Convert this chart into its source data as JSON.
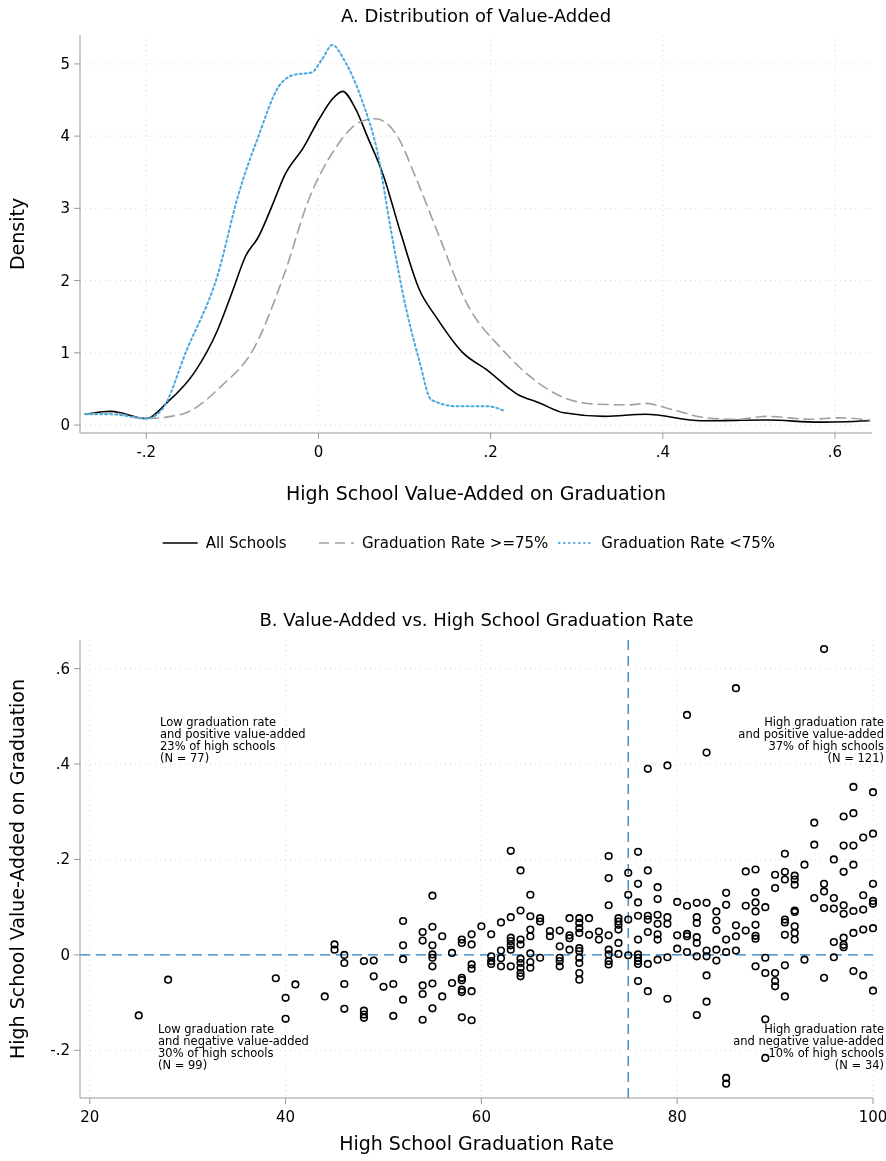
{
  "chart_data": [
    {
      "type": "line",
      "title": "A. Distribution of Value-Added",
      "xlabel": "High School Value-Added on Graduation",
      "ylabel": "Density",
      "xlim": [
        -0.277,
        0.643
      ],
      "ylim": [
        -0.11,
        5.4
      ],
      "xticks": [
        {
          "value": -0.2,
          "label": "-.2"
        },
        0,
        {
          "value": 0.2,
          "label": ".2"
        },
        {
          "value": 0.4,
          "label": ".4"
        },
        {
          "value": 0.6,
          "label": ".6"
        }
      ],
      "yticks": [
        0,
        1,
        2,
        3,
        4,
        5
      ],
      "grid": true,
      "legend": "bottom",
      "series": [
        {
          "name": "All Schools",
          "color": "#000000",
          "line_style": "solid",
          "x": [
            -0.271,
            -0.241,
            -0.2,
            -0.176,
            -0.144,
            -0.117,
            -0.099,
            -0.085,
            -0.07,
            -0.052,
            -0.04,
            -0.017,
            0.001,
            0.016,
            0.028,
            0.043,
            0.057,
            0.075,
            0.096,
            0.117,
            0.137,
            0.167,
            0.196,
            0.232,
            0.256,
            0.285,
            0.333,
            0.38,
            0.445,
            0.522,
            0.581,
            0.64
          ],
          "values": [
            0.15,
            0.19,
            0.09,
            0.31,
            0.73,
            1.32,
            1.88,
            2.33,
            2.6,
            3.09,
            3.44,
            3.85,
            4.24,
            4.51,
            4.62,
            4.38,
            3.99,
            3.47,
            2.64,
            1.88,
            1.49,
            1.01,
            0.76,
            0.42,
            0.31,
            0.17,
            0.12,
            0.15,
            0.06,
            0.07,
            0.04,
            0.06
          ]
        },
        {
          "name": "Graduation Rate >=75%",
          "color": "#a0a0a0",
          "line_style": "dashed",
          "x": [
            -0.271,
            -0.241,
            -0.2,
            -0.159,
            -0.111,
            -0.076,
            -0.04,
            -0.011,
            0.019,
            0.049,
            0.066,
            0.09,
            0.114,
            0.137,
            0.173,
            0.214,
            0.244,
            0.285,
            0.321,
            0.362,
            0.38,
            0.409,
            0.451,
            0.486,
            0.522,
            0.57,
            0.605,
            0.64
          ],
          "values": [
            0.15,
            0.17,
            0.09,
            0.15,
            0.56,
            1.04,
            2.08,
            3.13,
            3.82,
            4.2,
            4.24,
            4.03,
            3.4,
            2.71,
            1.67,
            1.04,
            0.69,
            0.38,
            0.29,
            0.28,
            0.3,
            0.22,
            0.1,
            0.08,
            0.12,
            0.08,
            0.1,
            0.07
          ]
        },
        {
          "name": "Graduation Rate <75%",
          "color": "#4aa8e0",
          "line_style": "dotted",
          "x": [
            -0.271,
            -0.241,
            -0.2,
            -0.182,
            -0.153,
            -0.117,
            -0.093,
            -0.07,
            -0.046,
            -0.028,
            -0.008,
            0.004,
            0.016,
            0.031,
            0.051,
            0.069,
            0.084,
            0.102,
            0.117,
            0.131,
            0.161,
            0.196,
            0.217
          ],
          "values": [
            0.15,
            0.15,
            0.09,
            0.21,
            1.04,
            2.08,
            3.19,
            3.99,
            4.69,
            4.85,
            4.88,
            5.06,
            5.26,
            5.03,
            4.48,
            3.75,
            2.71,
            1.6,
            0.9,
            0.35,
            0.26,
            0.26,
            0.19
          ]
        }
      ]
    },
    {
      "type": "scatter",
      "title": "B. Value-Added vs. High School Graduation Rate",
      "xlabel": "High School Graduation Rate",
      "ylabel": "High School Value-Added on Graduation",
      "xlim": [
        19,
        100
      ],
      "ylim": [
        -0.3,
        0.66
      ],
      "xticks": [
        20,
        40,
        60,
        80,
        100
      ],
      "yticks": [
        {
          "value": -0.2,
          "label": "-.2"
        },
        0,
        {
          "value": 0.2,
          "label": ".2"
        },
        {
          "value": 0.4,
          "label": ".4"
        },
        {
          "value": 0.6,
          "label": ".6"
        }
      ],
      "grid": true,
      "legend": false,
      "marker": "circle",
      "ref_lines": [
        {
          "axis": "x",
          "value": 75,
          "color": "#2a7fc0",
          "line_style": "dashed"
        },
        {
          "axis": "y",
          "value": 0,
          "color": "#2a7fc0",
          "line_style": "dashed"
        }
      ],
      "annotations": [
        "Low graduation rate\nand positive value-added\n23% of high schools\n(N = 77)",
        "High graduation rate\nand positive value-added\n37% of high schools\n(N = 121)",
        "Low graduation rate\nand negative value-added\n30% of high schools\n(N = 99)",
        "High graduation rate\nand negative value-added\n10% of high schools\n(N = 34)"
      ],
      "series": [
        {
          "color": "#000000",
          "x": [
            25,
            28,
            39,
            40,
            40,
            41,
            44,
            45,
            45,
            46,
            46,
            46,
            46,
            48,
            49,
            49,
            48,
            48,
            48,
            50,
            51,
            51,
            52,
            52,
            52,
            52,
            54,
            54,
            54,
            54,
            54,
            55,
            55,
            55,
            55,
            55,
            55,
            55,
            55,
            56,
            56,
            57,
            57,
            58,
            58,
            58,
            58,
            58,
            58,
            58,
            59,
            59,
            59,
            59,
            59,
            59,
            64,
            65,
            64,
            63,
            62,
            60,
            61,
            65,
            66,
            66,
            65,
            65,
            63,
            63,
            63,
            63,
            64,
            64,
            62,
            65,
            61,
            62,
            61,
            61,
            62,
            64,
            64,
            64,
            64,
            64,
            65,
            65,
            63,
            66,
            67,
            67,
            68,
            68,
            68,
            68,
            68,
            69,
            69,
            69,
            69,
            70,
            70,
            70,
            70,
            70,
            70,
            70,
            70,
            70,
            70,
            71,
            71,
            72,
            72,
            73,
            73,
            73,
            73,
            73,
            73,
            73,
            74,
            74,
            74,
            74,
            74,
            74,
            75,
            75,
            75,
            75,
            76,
            76,
            76,
            76,
            76,
            76,
            76,
            76,
            76,
            77,
            77,
            77,
            77,
            77,
            77,
            78,
            78,
            78,
            78,
            78,
            78,
            78,
            79,
            79,
            79,
            79,
            80,
            80,
            80,
            81,
            81,
            81,
            81,
            82,
            82,
            82,
            82,
            82,
            82,
            82,
            83,
            83,
            83,
            83,
            83,
            84,
            84,
            84,
            84,
            84,
            85,
            85,
            85,
            85,
            85,
            85,
            86,
            86,
            86,
            87,
            87,
            87,
            88,
            88,
            88,
            88,
            88,
            88,
            88,
            88,
            89,
            89,
            89,
            89,
            89,
            90,
            90,
            90,
            90,
            90,
            91,
            91,
            91,
            91,
            91,
            91,
            91,
            92,
            92,
            92,
            92,
            92,
            92,
            92,
            92,
            93,
            93,
            94,
            95,
            95,
            95,
            95,
            96,
            96,
            96,
            96,
            96,
            97,
            97,
            97,
            97,
            97,
            97,
            98,
            98,
            98,
            98,
            99,
            99,
            99,
            99,
            100,
            100,
            100,
            100,
            100,
            63,
            73,
            76,
            77,
            79,
            81,
            83,
            86,
            95,
            98,
            100,
            94,
            97,
            98,
            94,
            97,
            98,
            99,
            100,
            91
          ],
          "values": [
            -0.127,
            -0.052,
            -0.049,
            -0.09,
            -0.134,
            -0.062,
            -0.087,
            0.022,
            0.011,
            0,
            -0.017,
            -0.061,
            -0.113,
            -0.013,
            -0.012,
            -0.045,
            -0.117,
            -0.125,
            -0.132,
            -0.067,
            -0.061,
            -0.128,
            0.071,
            0.02,
            -0.009,
            -0.094,
            0.048,
            0.03,
            -0.064,
            -0.082,
            -0.136,
            0.124,
            0.059,
            0.02,
            0.001,
            -0.006,
            -0.024,
            -0.06,
            -0.112,
            0.039,
            -0.087,
            0.004,
            -0.059,
            0.032,
            0.025,
            -0.048,
            -0.053,
            -0.073,
            -0.078,
            -0.131,
            0.043,
            0.022,
            -0.02,
            -0.029,
            -0.076,
            -0.137,
            0.177,
            0.126,
            0.093,
            0.079,
            0.068,
            0.06,
            0.043,
            0.081,
            0.077,
            0.07,
            0.053,
            0.039,
            0.036,
            0.029,
            0.02,
            0.011,
            0.032,
            0.022,
            0.009,
            0.003,
            -0.003,
            -0.007,
            -0.013,
            -0.019,
            -0.024,
            -0.008,
            -0.017,
            -0.027,
            -0.038,
            -0.045,
            -0.015,
            -0.027,
            -0.024,
            -0.006,
            0.05,
            0.039,
            0.051,
            0.018,
            -0.006,
            -0.013,
            -0.024,
            0.077,
            0.041,
            0.035,
            0.011,
            0.077,
            0.067,
            0.056,
            0.046,
            0.014,
            0.008,
            -0.006,
            -0.017,
            -0.038,
            -0.052,
            0.077,
            0.042,
            0.049,
            0.032,
            0.104,
            0.161,
            0.041,
            0.011,
            0.001,
            -0.013,
            -0.02,
            0.077,
            0.07,
            0.063,
            0.053,
            0.025,
            0.002,
            0.172,
            0.126,
            0.074,
            -0.001,
            0.149,
            0.11,
            0.082,
            0.032,
            0.001,
            -0.006,
            -0.013,
            -0.019,
            -0.055,
            0.177,
            0.082,
            0.074,
            0.048,
            -0.019,
            -0.076,
            0.142,
            0.117,
            0.084,
            0.065,
            0.043,
            0.032,
            -0.01,
            0.079,
            0.065,
            -0.005,
            -0.092,
            0.111,
            0.041,
            0.013,
            0.103,
            0.044,
            0.039,
            0.006,
            0.109,
            0.079,
            0.067,
            0.037,
            0.025,
            -0.003,
            -0.126,
            0.109,
            0.009,
            -0.003,
            -0.043,
            -0.098,
            0.091,
            0.072,
            0.052,
            0.011,
            -0.012,
            0.13,
            0.105,
            0.032,
            0.006,
            -0.258,
            -0.27,
            0.062,
            0.039,
            0.009,
            0.175,
            0.103,
            0.051,
            0.179,
            0.131,
            0.11,
            0.091,
            0.063,
            0.04,
            0.034,
            -0.024,
            0.1,
            -0.006,
            -0.038,
            -0.135,
            -0.216,
            0.168,
            0.14,
            -0.038,
            -0.055,
            -0.066,
            0.174,
            0.158,
            0.074,
            0.068,
            0.042,
            -0.022,
            -0.087,
            0.166,
            0.158,
            0.147,
            0.093,
            0.09,
            0.06,
            0.046,
            0.032,
            0.189,
            -0.01,
            0.119,
            0.149,
            0.133,
            0.098,
            -0.048,
            0.2,
            0.119,
            0.097,
            0.027,
            -0.005,
            0.174,
            0.104,
            0.086,
            0.036,
            0.021,
            0.016,
            0.189,
            0.092,
            0.046,
            -0.034,
            0.125,
            0.095,
            0.053,
            -0.043,
            0.149,
            0.113,
            0.107,
            0.056,
            -0.075,
            0.218,
            0.207,
            0.216,
            0.39,
            0.397,
            0.503,
            0.424,
            0.559,
            0.641,
            0.352,
            0.341,
            0.277,
            0.29,
            0.297,
            0.231,
            0.229,
            0.229,
            0.246,
            0.254,
            0.212
          ]
        }
      ]
    }
  ]
}
